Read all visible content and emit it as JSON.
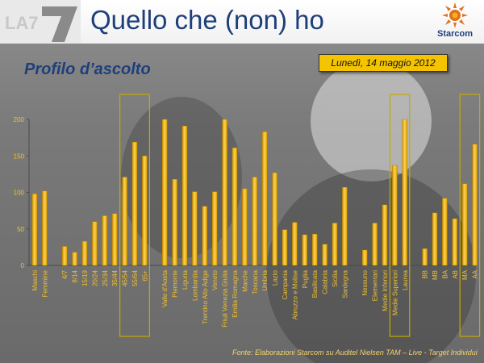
{
  "header": {
    "title": "Quello che (non) ho",
    "logo_text": "LA7",
    "brand": "Starcom"
  },
  "subtitle": "Profilo d’ascolto",
  "date_label": "Lunedì, 14 maggio 2012",
  "source": "Fonte:  Elaborazioni Starcom su Auditel Nielsen TAM – Live - Target Individui",
  "colors": {
    "title": "#1f3f7a",
    "bar": "#f2b705",
    "date_box": "#f5c400",
    "highlight_box": "#c8a800",
    "source_text": "#f3d36b"
  },
  "chart_data": {
    "type": "bar",
    "ylim": [
      0,
      200
    ],
    "yticks": [
      0,
      50,
      100,
      150,
      200
    ],
    "grid": false,
    "title": "",
    "xlabel": "",
    "ylabel": "",
    "groups": [
      {
        "categories": [
          "Maschi",
          "Femmine"
        ],
        "values": [
          98,
          102
        ]
      },
      {
        "categories": [
          "4/7",
          "8/14",
          "15/19",
          "20/24",
          "25/34",
          "35/44",
          "45/54",
          "55/64",
          "65+"
        ],
        "values": [
          26,
          18,
          33,
          60,
          68,
          71,
          121,
          169,
          150
        ]
      },
      {
        "categories": [
          "Valle d'Aosta",
          "Piemonte",
          "Liguria",
          "Lombardia",
          "Trentino Alto Adige",
          "Veneto",
          "Friuli Venezia Giulia",
          "Emilia Romagna",
          "Marche",
          "Toscana",
          "Umbria",
          "Lazio",
          "Campania",
          "Abruzzo e Molise",
          "Puglia",
          "Basilicata",
          "Calabria",
          "Sicilia",
          "Sardegna"
        ],
        "values": [
          200,
          118,
          191,
          101,
          81,
          101,
          200,
          161,
          105,
          121,
          183,
          127,
          49,
          59,
          42,
          43,
          29,
          58,
          107
        ]
      },
      {
        "categories": [
          "Nessuno",
          "Elementari",
          "Medie Inferiori",
          "Medie Superiori",
          "Laurea"
        ],
        "values": [
          21,
          58,
          83,
          137,
          200
        ]
      },
      {
        "categories": [
          "BB",
          "MB",
          "BA",
          "AB",
          "MA",
          "AA"
        ],
        "values": [
          23,
          72,
          92,
          64,
          112,
          166
        ]
      }
    ],
    "highlighted": [
      "45/54",
      "55/64",
      "65+",
      "Medie Superiori",
      "Laurea",
      "MA",
      "AA"
    ]
  }
}
